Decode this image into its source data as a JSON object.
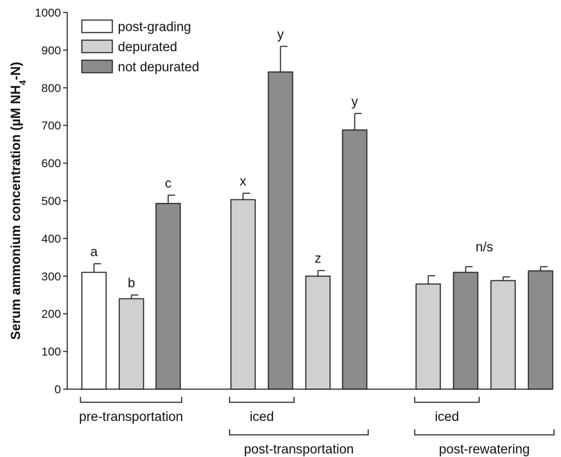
{
  "chart_data": {
    "type": "bar",
    "ylabel_main": "Serum ammonium concentration (µM NH",
    "ylabel_sub": "4",
    "ylabel_end": "-N)",
    "ylim": [
      0,
      1000
    ],
    "yticks": [
      0,
      100,
      200,
      300,
      400,
      500,
      600,
      700,
      800,
      900,
      1000
    ],
    "colors": {
      "post-grading": "#ffffff",
      "depurated": "#d0d0d0",
      "not depurated": "#8c8c8c"
    },
    "legend": {
      "position": "top-left",
      "items": [
        {
          "label": "post-grading",
          "key": "post-grading"
        },
        {
          "label": "depurated",
          "key": "depurated"
        },
        {
          "label": "not depurated",
          "key": "not depurated"
        }
      ]
    },
    "bars": [
      {
        "series": "post-grading",
        "value": 310,
        "error": 23,
        "sig": "a"
      },
      {
        "series": "depurated",
        "value": 240,
        "error": 10,
        "sig": "b"
      },
      {
        "series": "not depurated",
        "value": 493,
        "error": 22,
        "sig": "c"
      },
      {
        "series": "depurated",
        "value": 503,
        "error": 17,
        "sig": "x"
      },
      {
        "series": "not depurated",
        "value": 842,
        "error": 68,
        "sig": "y"
      },
      {
        "series": "depurated",
        "value": 300,
        "error": 15,
        "sig": "z"
      },
      {
        "series": "not depurated",
        "value": 688,
        "error": 44,
        "sig": "y"
      },
      {
        "series": "depurated",
        "value": 279,
        "error": 22,
        "sig": ""
      },
      {
        "series": "not depurated",
        "value": 310,
        "error": 15,
        "sig": ""
      },
      {
        "series": "depurated",
        "value": 288,
        "error": 10,
        "sig": ""
      },
      {
        "series": "not depurated",
        "value": 314,
        "error": 11,
        "sig": ""
      }
    ],
    "annotation_ns": "n/s",
    "groups": [
      {
        "label": "pre-transportation",
        "bars": [
          0,
          2
        ],
        "row": 1
      },
      {
        "label": "iced",
        "bars": [
          3,
          4
        ],
        "row": 1
      },
      {
        "label": "post-transportation",
        "bars": [
          3,
          6
        ],
        "row": 2
      },
      {
        "label": "iced",
        "bars": [
          7,
          8
        ],
        "row": 1
      },
      {
        "label": "post-rewatering",
        "bars": [
          7,
          10
        ],
        "row": 2
      }
    ]
  }
}
